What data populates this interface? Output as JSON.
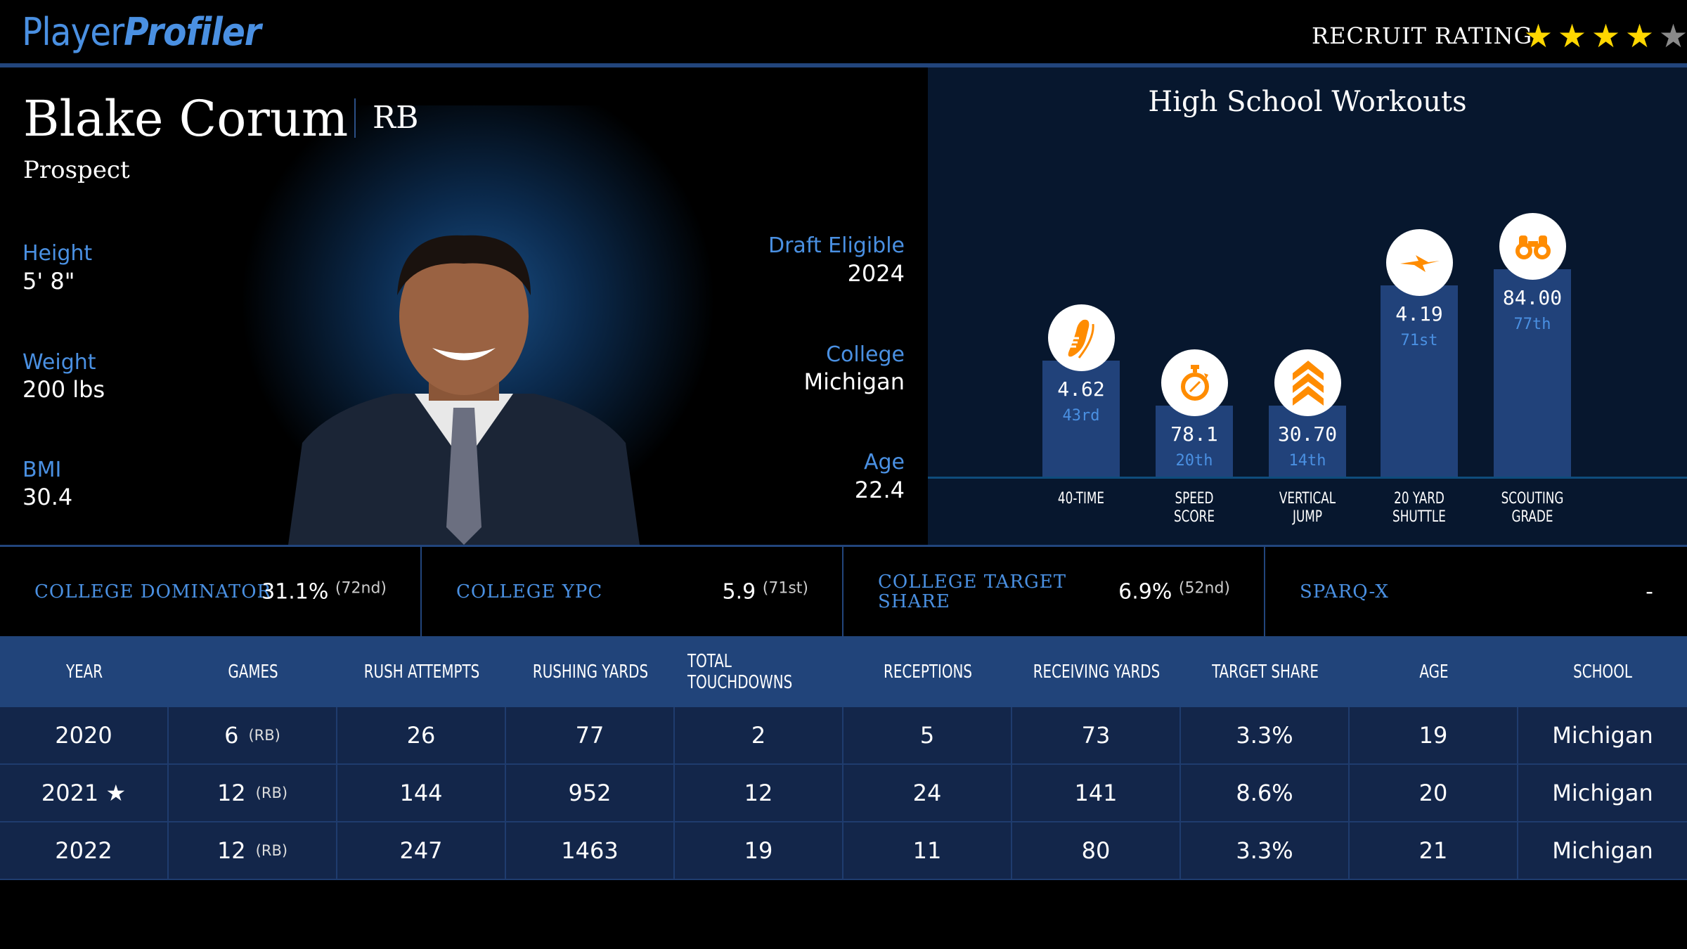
{
  "header": {
    "logo_part1": "Player",
    "logo_part2": "Profiler",
    "recruit_label": "RECRUIT RATING",
    "recruit_stars": 4,
    "recruit_max": 5
  },
  "player": {
    "name": "Blake Corum",
    "position": "RB",
    "status": "Prospect",
    "left": [
      {
        "label": "Height",
        "value": "5' 8\""
      },
      {
        "label": "Weight",
        "value": "200 lbs"
      },
      {
        "label": "BMI",
        "value": "30.4"
      }
    ],
    "right": [
      {
        "label": "Draft Eligible",
        "value": "2024"
      },
      {
        "label": "College",
        "value": "Michigan"
      },
      {
        "label": "Age",
        "value": "22.4"
      }
    ]
  },
  "workouts": {
    "title": "High School Workouts",
    "items": [
      {
        "label1": "40-TIME",
        "label2": "",
        "value": "4.62",
        "rank": "43rd",
        "percentile": 43,
        "icon": "shoe-icon"
      },
      {
        "label1": "SPEED",
        "label2": "SCORE",
        "value": "78.1",
        "rank": "20th",
        "percentile": 20,
        "icon": "stopwatch-icon"
      },
      {
        "label1": "VERTICAL",
        "label2": "JUMP",
        "value": "30.70",
        "rank": "14th",
        "percentile": 14,
        "icon": "chevrons-up-icon"
      },
      {
        "label1": "20 YARD",
        "label2": "SHUTTLE",
        "value": "4.19",
        "rank": "71st",
        "percentile": 71,
        "icon": "lightning-icon"
      },
      {
        "label1": "SCOUTING",
        "label2": "GRADE",
        "value": "84.00",
        "rank": "77th",
        "percentile": 77,
        "icon": "binoculars-icon"
      }
    ]
  },
  "stats": [
    {
      "label": "COLLEGE DOMINATOR",
      "value": "31.1%",
      "rank": "(72nd)"
    },
    {
      "label": "COLLEGE YPC",
      "value": "5.9",
      "rank": "(71st)"
    },
    {
      "label": "COLLEGE TARGET SHARE",
      "value": "6.9%",
      "rank": "(52nd)"
    },
    {
      "label": "SPARQ-X",
      "value": "-",
      "rank": ""
    }
  ],
  "table": {
    "headers": [
      "YEAR",
      "GAMES",
      "RUSH ATTEMPTS",
      "RUSHING YARDS",
      "TOTAL TOUCHDOWNS",
      "RECEPTIONS",
      "RECEIVING YARDS",
      "TARGET SHARE",
      "AGE",
      "SCHOOL"
    ],
    "rows": [
      {
        "year": "2020",
        "games": "6",
        "pos": "(RB)",
        "cells": [
          "26",
          "77",
          "2",
          "5",
          "73",
          "3.3%",
          "19",
          "Michigan"
        ]
      },
      {
        "year": "2021 ★",
        "games": "12",
        "pos": "(RB)",
        "cells": [
          "144",
          "952",
          "12",
          "24",
          "141",
          "8.6%",
          "20",
          "Michigan"
        ]
      },
      {
        "year": "2022",
        "games": "12",
        "pos": "(RB)",
        "cells": [
          "247",
          "1463",
          "19",
          "11",
          "80",
          "3.3%",
          "21",
          "Michigan"
        ]
      }
    ]
  },
  "colors": {
    "accent": "#4a90e2",
    "gold": "#ffd700",
    "orange": "#ff8c00",
    "bar": "#21427a"
  }
}
